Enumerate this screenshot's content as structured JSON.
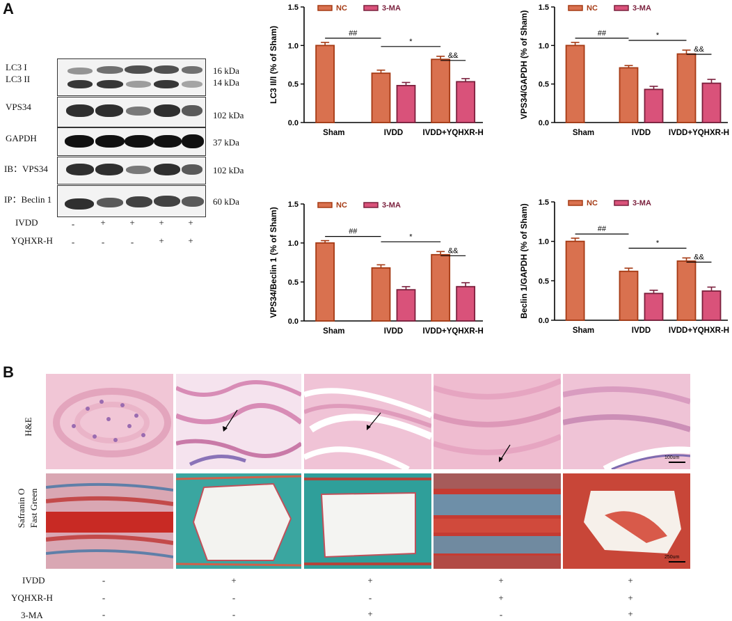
{
  "panel_a_label": "A",
  "panel_b_label": "B",
  "western_blot": {
    "rows": [
      {
        "label": "LC3 I",
        "label2": "LC3 II",
        "kda": "16 kDa",
        "kda2": "14 kDa"
      },
      {
        "label": "VPS34",
        "kda": "102 kDa"
      },
      {
        "label": "GAPDH",
        "kda": "37 kDa"
      },
      {
        "label": "IB：VPS34",
        "kda": "102 kDa"
      },
      {
        "label": "IP：Beclin 1",
        "kda": "60 kDa"
      }
    ],
    "conditions": [
      {
        "label": "IVDD",
        "signs": [
          "-",
          "+",
          "+",
          "+",
          "+"
        ]
      },
      {
        "label": "YQHXR-H",
        "signs": [
          "-",
          "-",
          "-",
          "+",
          "+"
        ]
      }
    ]
  },
  "chart_data": [
    {
      "type": "bar",
      "categories": [
        "Sham",
        "IVDD",
        "IVDD+YQHXR-H"
      ],
      "ylabel": "LC3 II/I (% of Sham)",
      "ylim": [
        0,
        1.5
      ],
      "yticks": [
        "0.0",
        "0.5",
        "1.0",
        "1.5"
      ],
      "series": [
        {
          "name": "NC",
          "values": [
            1.0,
            0.64,
            0.82
          ],
          "errors": [
            0.04,
            0.04,
            0.04
          ],
          "color": "#d9714f",
          "edge": "#a53a14"
        },
        {
          "name": "3-MA",
          "values": [
            null,
            0.48,
            0.53
          ],
          "errors": [
            null,
            0.04,
            0.04
          ],
          "color": "#d9527a",
          "edge": "#7a1f3c"
        }
      ],
      "annotations": [
        "##",
        "*",
        "&&"
      ]
    },
    {
      "type": "bar",
      "categories": [
        "Sham",
        "IVDD",
        "IVDD+YQHXR-H"
      ],
      "ylabel": "VPS34/GAPDH (% of Sham)",
      "ylim": [
        0,
        1.5
      ],
      "yticks": [
        "0.0",
        "0.5",
        "1.0",
        "1.5"
      ],
      "series": [
        {
          "name": "NC",
          "values": [
            1.0,
            0.71,
            0.89
          ],
          "errors": [
            0.04,
            0.03,
            0.05
          ],
          "color": "#d9714f",
          "edge": "#a53a14"
        },
        {
          "name": "3-MA",
          "values": [
            null,
            0.43,
            0.51
          ],
          "errors": [
            null,
            0.04,
            0.05
          ],
          "color": "#d9527a",
          "edge": "#7a1f3c"
        }
      ],
      "annotations": [
        "##",
        "*",
        "&&"
      ]
    },
    {
      "type": "bar",
      "categories": [
        "Sham",
        "IVDD",
        "IVDD+YQHXR-H"
      ],
      "ylabel": "VPS34/Beclin 1 (% of Sham)",
      "ylim": [
        0,
        1.5
      ],
      "yticks": [
        "0.0",
        "0.5",
        "1.0",
        "1.5"
      ],
      "series": [
        {
          "name": "NC",
          "values": [
            1.0,
            0.68,
            0.85
          ],
          "errors": [
            0.03,
            0.04,
            0.04
          ],
          "color": "#d9714f",
          "edge": "#a53a14"
        },
        {
          "name": "3-MA",
          "values": [
            null,
            0.4,
            0.44
          ],
          "errors": [
            null,
            0.04,
            0.05
          ],
          "color": "#d9527a",
          "edge": "#7a1f3c"
        }
      ],
      "annotations": [
        "##",
        "*",
        "&&"
      ]
    },
    {
      "type": "bar",
      "categories": [
        "Sham",
        "IVDD",
        "IVDD+YQHXR-H"
      ],
      "ylabel": "Beclin 1/GAPDH (% of Sham)",
      "ylim": [
        0,
        1.5
      ],
      "yticks": [
        "0.0",
        "0.5",
        "1.0",
        "1.5"
      ],
      "series": [
        {
          "name": "NC",
          "values": [
            1.0,
            0.62,
            0.75
          ],
          "errors": [
            0.04,
            0.04,
            0.04
          ],
          "color": "#d9714f",
          "edge": "#a53a14"
        },
        {
          "name": "3-MA",
          "values": [
            null,
            0.34,
            0.37
          ],
          "errors": [
            null,
            0.04,
            0.05
          ],
          "color": "#d9527a",
          "edge": "#7a1f3c"
        }
      ],
      "annotations": [
        "##",
        "*",
        "&&"
      ]
    }
  ],
  "histology": {
    "row_labels": [
      "H&E",
      "Safranin O",
      "Fast Green"
    ],
    "scale_bars": [
      "100um",
      "250um"
    ],
    "conditions": [
      {
        "label": "IVDD",
        "signs": [
          "-",
          "+",
          "+",
          "+",
          "+"
        ]
      },
      {
        "label": "YQHXR-H",
        "signs": [
          "-",
          "-",
          "-",
          "+",
          "+"
        ]
      },
      {
        "label": "3-MA",
        "signs": [
          "-",
          "-",
          "+",
          "-",
          "+"
        ]
      }
    ]
  }
}
